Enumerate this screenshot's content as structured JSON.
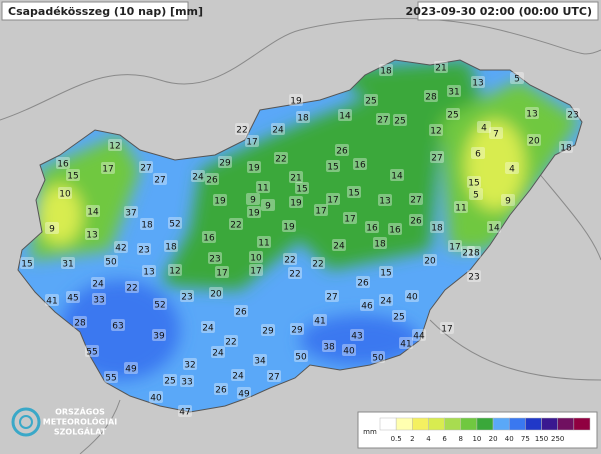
{
  "header": {
    "title": "Csapadékösszeg (10 nap) [mm]",
    "timestamp": "2023-09-30 02:00 (00:00 UTC)"
  },
  "logo": {
    "lines": [
      "ORSZÁGOS",
      "METEOROLÓGIAI",
      "SZOLGÁLAT"
    ]
  },
  "legend": {
    "unit": "mm",
    "labels": [
      "0.5",
      "2",
      "4",
      "6",
      "8",
      "10",
      "20",
      "40",
      "75",
      "150",
      "250"
    ],
    "colors": [
      "#ffffff",
      "#ffffb0",
      "#f4f060",
      "#d8ec50",
      "#a8dc50",
      "#70c840",
      "#3aa83a",
      "#5aa8f8",
      "#3a78f0",
      "#2038c8",
      "#3a1890",
      "#701060",
      "#900040"
    ]
  },
  "stations": [
    18,
    21,
    13,
    5,
    28,
    31,
    19,
    25,
    14,
    27,
    25,
    25,
    12,
    13,
    23,
    4,
    7,
    20,
    18,
    22,
    24,
    17,
    18,
    12,
    17,
    16,
    15,
    10,
    27,
    27,
    24,
    26,
    29,
    19,
    22,
    26,
    16,
    15,
    21,
    27,
    6,
    4,
    15,
    5,
    11,
    9,
    11,
    9,
    9,
    19,
    19,
    19,
    15,
    17,
    15,
    14,
    13,
    27,
    26,
    16,
    16,
    18,
    17,
    17,
    9,
    14,
    37,
    52,
    18,
    13,
    42,
    23,
    18,
    16,
    22,
    11,
    19,
    24,
    18,
    17,
    14,
    22,
    23,
    15,
    31,
    50,
    13,
    12,
    23,
    10,
    22,
    22,
    22,
    17,
    17,
    15,
    20,
    18,
    41,
    45,
    33,
    24,
    22,
    52,
    23,
    20,
    27,
    26,
    46,
    24,
    40,
    28,
    63,
    39,
    24,
    26,
    29,
    29,
    41,
    25,
    55,
    49,
    32,
    22,
    24,
    34,
    50,
    38,
    40,
    43,
    50,
    41,
    44,
    17,
    55,
    25,
    33,
    27,
    24,
    40,
    26,
    49,
    47
  ]
}
